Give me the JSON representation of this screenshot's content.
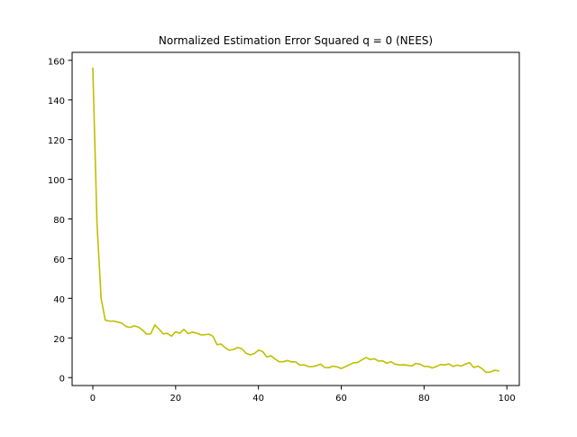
{
  "chart_data": {
    "type": "line",
    "title": "Normalized Estimation Error Squared q = 0 (NEES)",
    "xlabel": "",
    "ylabel": "",
    "xlim": [
      -5,
      103
    ],
    "ylim": [
      -4,
      164
    ],
    "x_ticks": [
      0,
      20,
      40,
      60,
      80,
      100
    ],
    "y_ticks": [
      0,
      20,
      40,
      60,
      80,
      100,
      120,
      140,
      160
    ],
    "grid": false,
    "series": [
      {
        "name": "NEES",
        "color": "#bfbf00",
        "x": [
          0,
          1,
          2,
          3,
          4,
          5,
          6,
          7,
          8,
          9,
          10,
          11,
          12,
          13,
          14,
          15,
          16,
          17,
          18,
          19,
          20,
          21,
          22,
          23,
          24,
          25,
          26,
          27,
          28,
          29,
          30,
          31,
          32,
          33,
          34,
          35,
          36,
          37,
          38,
          39,
          40,
          41,
          42,
          43,
          44,
          45,
          46,
          47,
          48,
          49,
          50,
          51,
          52,
          53,
          54,
          55,
          56,
          57,
          58,
          59,
          60,
          61,
          62,
          63,
          64,
          65,
          66,
          67,
          68,
          69,
          70,
          71,
          72,
          73,
          74,
          75,
          76,
          77,
          78,
          79,
          80,
          81,
          82,
          83,
          84,
          85,
          86,
          87,
          88,
          89,
          90,
          91,
          92,
          93,
          94,
          95,
          96,
          97,
          98
        ],
        "values": [
          156,
          78,
          40,
          29,
          28.5,
          28.5,
          28,
          27.5,
          25.8,
          25.3,
          26.1,
          25.5,
          24,
          21.9,
          22.1,
          26.6,
          24.4,
          22.1,
          22.3,
          20.9,
          23.1,
          22.4,
          24.3,
          22.2,
          22.9,
          22.5,
          21.6,
          21.6,
          21.9,
          20.9,
          16.6,
          16.9,
          15,
          13.8,
          14.2,
          15.2,
          14.5,
          12.3,
          11.5,
          12.1,
          13.8,
          13.2,
          10.4,
          11,
          9.4,
          8,
          8,
          8.6,
          7.9,
          7.9,
          6.3,
          6.4,
          5.6,
          5.5,
          6,
          6.8,
          5.1,
          5,
          5.8,
          5.4,
          4.6,
          5.5,
          6.5,
          7.5,
          7.6,
          9,
          10.1,
          9.1,
          9.5,
          8.3,
          8.5,
          7.2,
          8,
          6.8,
          6.4,
          6.5,
          6.2,
          5.9,
          7.1,
          6.8,
          5.7,
          5.6,
          4.9,
          5.6,
          6.6,
          6.4,
          6.9,
          5.6,
          6.3,
          5.8,
          6.9,
          7.5,
          5.1,
          5.8,
          4.5,
          2.6,
          2.8,
          3.7,
          3.4
        ]
      }
    ]
  }
}
